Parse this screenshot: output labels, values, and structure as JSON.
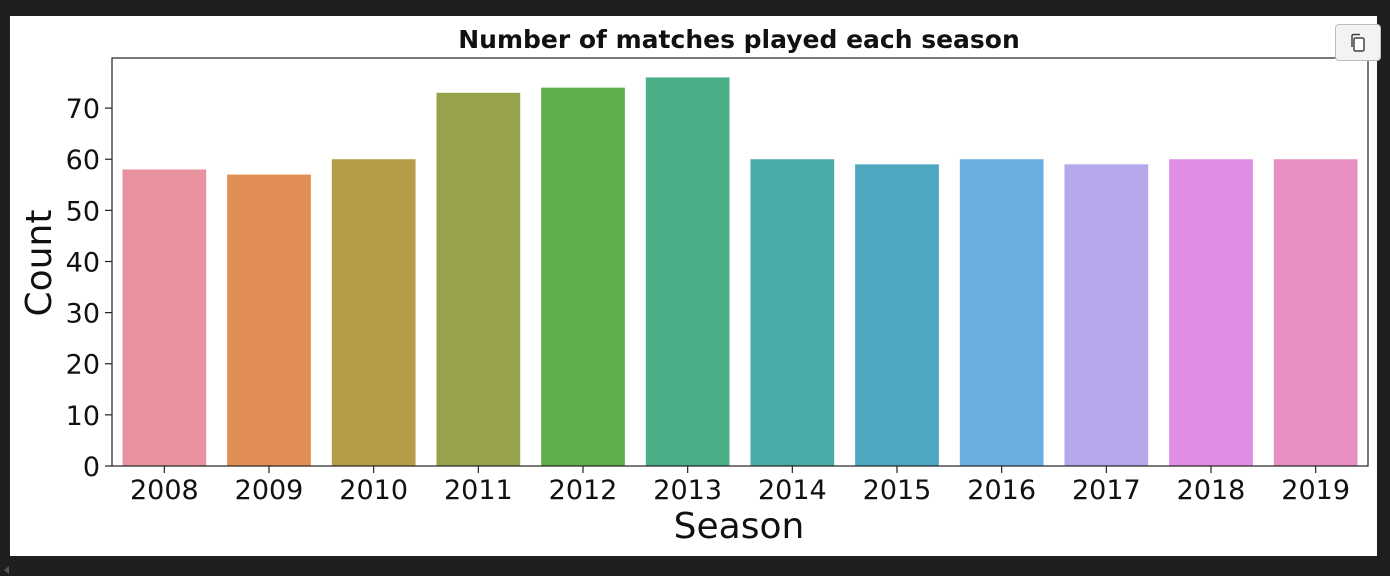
{
  "toolbar": {
    "copy_icon": "copy-icon"
  },
  "chart_data": {
    "type": "bar",
    "title": "Number of matches played each season",
    "xlabel": "Season",
    "ylabel": "Count",
    "categories": [
      "2008",
      "2009",
      "2010",
      "2011",
      "2012",
      "2013",
      "2014",
      "2015",
      "2016",
      "2017",
      "2018",
      "2019"
    ],
    "values": [
      58,
      57,
      60,
      73,
      74,
      76,
      60,
      59,
      60,
      59,
      60,
      60
    ],
    "colors": [
      "#e9929f",
      "#e08e53",
      "#b69b49",
      "#97a24a",
      "#5eae49",
      "#4cae87",
      "#4aaaa5",
      "#4da8bf",
      "#6aaee1",
      "#b6a6ea",
      "#df8de5",
      "#e88ec2"
    ],
    "ylim": [
      0,
      79.8
    ],
    "yticks": [
      0,
      10,
      20,
      30,
      40,
      50,
      60,
      70
    ],
    "grid": false,
    "legend": "none"
  }
}
